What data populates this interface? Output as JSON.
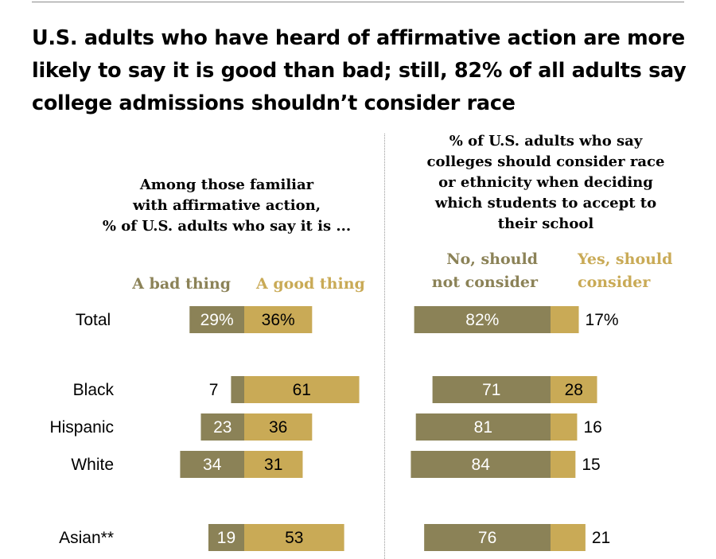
{
  "title": "U.S. adults who have heard of affirmative action are more likely to say it is good than bad; still, 82% of all adults say college admissions shouldn’t consider race",
  "left_panel": {
    "subtitle_lines": [
      "Among those familiar",
      "with affirmative action,",
      "% of U.S. adults who say it is ..."
    ],
    "legend_bad": "A bad thing",
    "legend_good": "A good thing"
  },
  "right_panel": {
    "subtitle_lines": [
      "% of U.S. adults who say",
      "colleges should consider race",
      "or ethnicity when deciding",
      "which students to accept to",
      "their school"
    ],
    "legend_no_lines": [
      "No, should",
      "not consider"
    ],
    "legend_yes_lines": [
      "Yes, should",
      "consider"
    ]
  },
  "colors": {
    "dark": "#8b8257",
    "light": "#c9aa56",
    "legend_dark": "#8b8257",
    "legend_light": "#c9aa56"
  },
  "chart_data": [
    {
      "type": "bar",
      "orientation": "horizontal",
      "stacking": "diverging",
      "categories": [
        "Total",
        "Black",
        "Hispanic",
        "White",
        "Asian**"
      ],
      "category_labels": [
        "Total",
        "Black",
        "Hispanic",
        "White",
        "Asian**"
      ],
      "series": [
        {
          "name": "A bad thing",
          "values": [
            29,
            7,
            23,
            34,
            19
          ],
          "labels": [
            "29%",
            "7",
            "23",
            "34",
            "19"
          ]
        },
        {
          "name": "A good thing",
          "values": [
            36,
            61,
            36,
            31,
            53
          ],
          "labels": [
            "36%",
            "61",
            "36",
            "31",
            "53"
          ]
        }
      ]
    },
    {
      "type": "bar",
      "orientation": "horizontal",
      "stacking": "stacked",
      "categories": [
        "Total",
        "Black",
        "Hispanic",
        "White",
        "Asian**"
      ],
      "series": [
        {
          "name": "No, should not consider",
          "values": [
            82,
            71,
            81,
            84,
            76
          ],
          "labels": [
            "82%",
            "71",
            "81",
            "84",
            "76"
          ]
        },
        {
          "name": "Yes, should consider",
          "values": [
            17,
            28,
            16,
            15,
            21
          ],
          "labels": [
            "17%",
            "28",
            "16",
            "15",
            "21"
          ]
        }
      ]
    }
  ]
}
